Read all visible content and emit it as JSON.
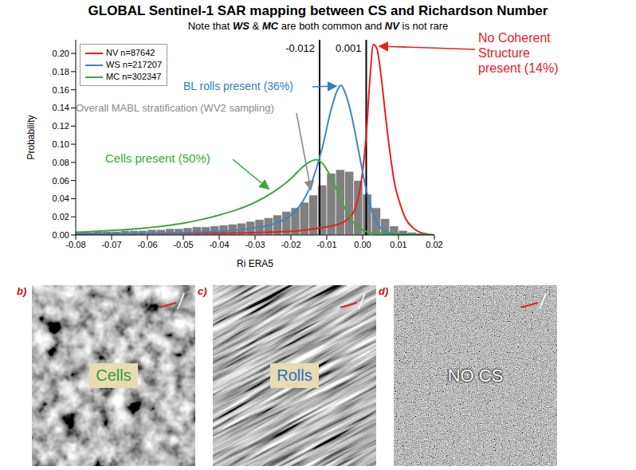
{
  "chart_data": {
    "type": "line",
    "title": "GLOBAL Sentinel-1 SAR mapping between CS and Richardson Number",
    "subtitle": "Note that WS & MC are both common and NV is not rare",
    "x_label": "Ri ERA5",
    "y_label": "Probability",
    "xlim": [
      -0.08,
      0.02
    ],
    "xticks": [
      -0.08,
      -0.07,
      -0.06,
      -0.05,
      -0.04,
      -0.03,
      -0.02,
      -0.01,
      {
        "value": 0,
        "label": "0.00"
      },
      0.01,
      0.02
    ],
    "ylim": [
      0,
      0.215
    ],
    "yticks": [
      {
        "value": 0,
        "label": "0.00"
      },
      0.02,
      0.04,
      0.06,
      0.08,
      {
        "value": 0.1,
        "label": "0.10"
      },
      0.12,
      0.14,
      0.16,
      0.18,
      {
        "value": 0.2,
        "label": "0.20"
      }
    ],
    "grid": false,
    "legend": "upper left",
    "series": [
      {
        "name": "NV n=87642",
        "color": "#e8201f",
        "type": "line",
        "marker": "none",
        "line_style": "solid",
        "x": [
          -0.08,
          -0.04,
          -0.02,
          -0.015,
          -0.01,
          -0.006,
          -0.004,
          -0.002,
          -0.001,
          0,
          0.001,
          0.002,
          0.003,
          0.004,
          0.005,
          0.006,
          0.007,
          0.008,
          0.009,
          0.01,
          0.012,
          0.014,
          0.016,
          0.018,
          0.02
        ],
        "values": [
          0.001,
          0.002,
          0.004,
          0.006,
          0.009,
          0.013,
          0.018,
          0.03,
          0.045,
          0.07,
          0.11,
          0.17,
          0.21,
          0.205,
          0.18,
          0.145,
          0.11,
          0.08,
          0.055,
          0.04,
          0.018,
          0.008,
          0.003,
          0.001,
          0
        ]
      },
      {
        "name": "WS n=217207",
        "color": "#3a86c8",
        "type": "line",
        "marker": "none",
        "line_style": "solid",
        "x": [
          -0.08,
          -0.06,
          -0.04,
          -0.03,
          -0.025,
          -0.02,
          -0.017,
          -0.015,
          -0.013,
          -0.011,
          -0.009,
          -0.007,
          -0.006,
          -0.005,
          -0.003,
          -0.001,
          0.001,
          0.003,
          0.005,
          0.008,
          0.012,
          0.02
        ],
        "values": [
          0.001,
          0.002,
          0.004,
          0.008,
          0.012,
          0.022,
          0.035,
          0.05,
          0.072,
          0.1,
          0.135,
          0.16,
          0.165,
          0.158,
          0.13,
          0.09,
          0.05,
          0.022,
          0.008,
          0.002,
          0.001,
          0
        ]
      },
      {
        "name": "MC n=302347",
        "color": "#3fa63f",
        "type": "line",
        "marker": "none",
        "line_style": "solid",
        "x": [
          -0.08,
          -0.07,
          -0.06,
          -0.05,
          -0.045,
          -0.04,
          -0.035,
          -0.03,
          -0.025,
          -0.02,
          -0.017,
          -0.015,
          -0.013,
          -0.011,
          -0.009,
          -0.007,
          -0.005,
          -0.003,
          -0.001,
          0.001,
          0.004,
          0.01,
          0.02
        ],
        "values": [
          0.003,
          0.005,
          0.008,
          0.013,
          0.017,
          0.022,
          0.028,
          0.036,
          0.047,
          0.062,
          0.074,
          0.08,
          0.083,
          0.078,
          0.065,
          0.048,
          0.03,
          0.016,
          0.008,
          0.004,
          0.002,
          0.001,
          0
        ]
      }
    ],
    "histogram": {
      "type": "bar",
      "color": "#808080",
      "bins": [
        -0.08,
        -0.0775,
        -0.075,
        -0.0725,
        -0.07,
        -0.0675,
        -0.065,
        -0.0625,
        -0.06,
        -0.0575,
        -0.055,
        -0.0525,
        -0.05,
        -0.0475,
        -0.045,
        -0.0425,
        -0.04,
        -0.0375,
        -0.035,
        -0.0325,
        -0.03,
        -0.0275,
        -0.025,
        -0.0225,
        -0.02,
        -0.0175,
        -0.015,
        -0.0125,
        -0.01,
        -0.0075,
        -0.005,
        -0.0025,
        0,
        0.0025,
        0.005,
        0.0075,
        0.01,
        0.0125,
        0.015,
        0.0175,
        0.02
      ],
      "values": [
        0.003,
        0.003,
        0.004,
        0.004,
        0.004,
        0.005,
        0.005,
        0.005,
        0.006,
        0.006,
        0.007,
        0.007,
        0.008,
        0.009,
        0.009,
        0.01,
        0.011,
        0.012,
        0.013,
        0.015,
        0.017,
        0.019,
        0.022,
        0.026,
        0.03,
        0.036,
        0.044,
        0.055,
        0.068,
        0.072,
        0.07,
        0.06,
        0.045,
        0.03,
        0.018,
        0.01,
        0.005,
        0.003,
        0.002,
        0.001
      ]
    },
    "vlines": [
      {
        "x": -0.012,
        "label": "-0.012",
        "color": "#000000"
      },
      {
        "x": 0.001,
        "label": "0.001",
        "color": "#000000"
      }
    ],
    "annotations": [
      {
        "text": "No Coherent Structure present (14%)",
        "color": "#e8201f"
      },
      {
        "text": "BL rolls present (36%)",
        "color": "#2f7fc1"
      },
      {
        "text": "Overall MABL stratification (WV2 sampling)",
        "color": "#8a8a8a"
      },
      {
        "text": "Cells present (50%)",
        "color": "#3aa83a"
      }
    ]
  },
  "panels": [
    {
      "letter": "b)",
      "label": "Cells",
      "color": "#3a9a3a"
    },
    {
      "letter": "c)",
      "label": "Rolls",
      "color": "#2f6fc1"
    },
    {
      "letter": "d)",
      "label": "NO CS",
      "color": "#ffffff"
    }
  ]
}
